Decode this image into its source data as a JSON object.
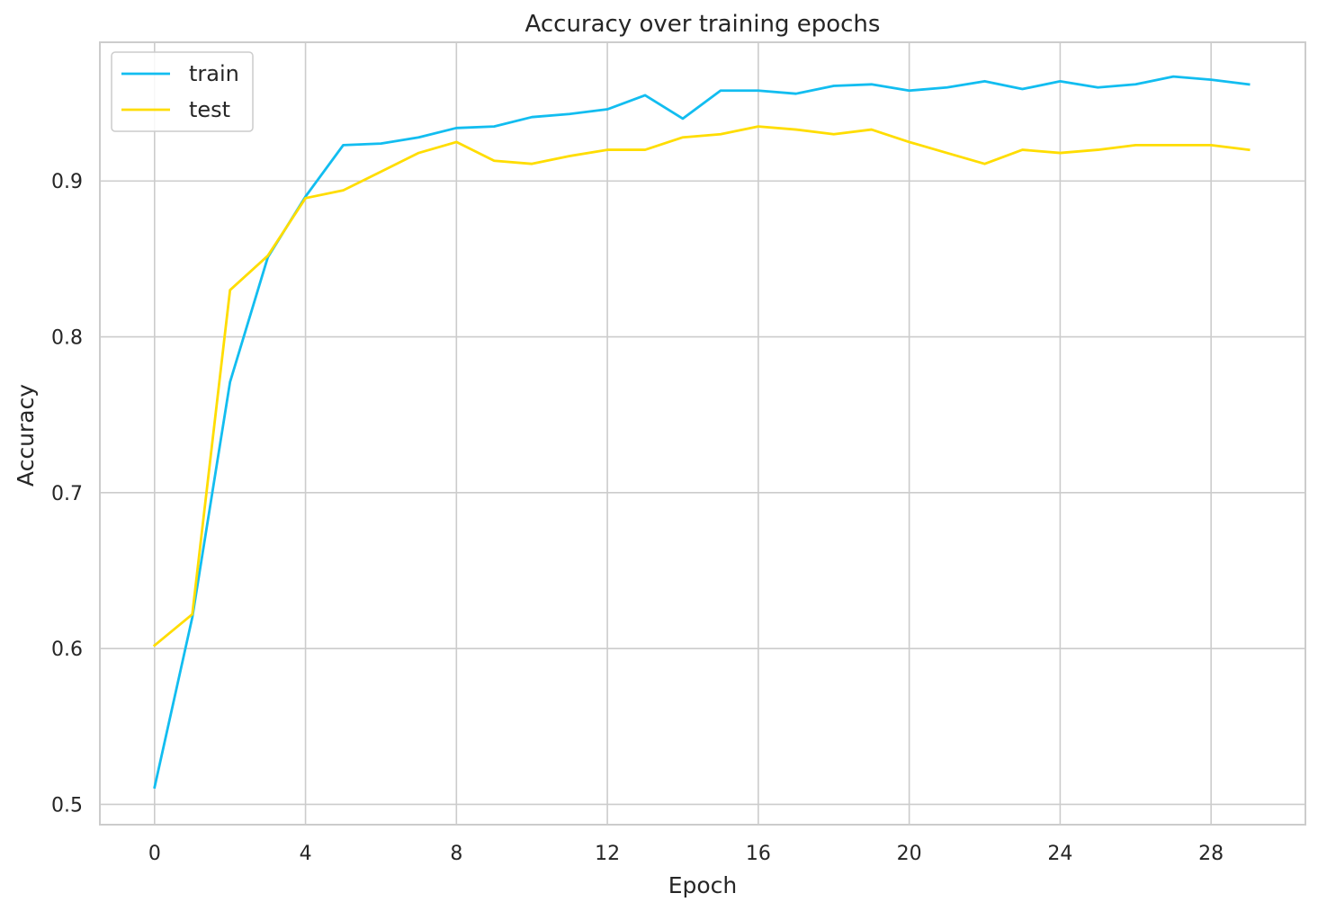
{
  "chart_data": {
    "type": "line",
    "title": "Accuracy over training epochs",
    "xlabel": "Epoch",
    "ylabel": "Accuracy",
    "x": [
      0,
      1,
      2,
      3,
      4,
      5,
      6,
      7,
      8,
      9,
      10,
      11,
      12,
      13,
      14,
      15,
      16,
      17,
      18,
      19,
      20,
      21,
      22,
      23,
      24,
      25,
      26,
      27,
      28,
      29
    ],
    "xlim": [
      -1.45,
      30.5
    ],
    "ylim": [
      0.487,
      0.989
    ],
    "xticks": [
      0,
      4,
      8,
      12,
      16,
      20,
      24,
      28
    ],
    "xtick_labels": [
      "0",
      "4",
      "8",
      "12",
      "16",
      "20",
      "24",
      "28"
    ],
    "yticks": [
      0.5,
      0.6,
      0.7,
      0.8,
      0.9
    ],
    "ytick_labels": [
      "0.5",
      "0.6",
      "0.7",
      "0.8",
      "0.9"
    ],
    "grid": true,
    "legend_position": "top-left",
    "series": [
      {
        "name": "train",
        "color": "#12bdf0",
        "values": [
          0.511,
          0.62,
          0.771,
          0.851,
          0.89,
          0.923,
          0.924,
          0.928,
          0.934,
          0.935,
          0.941,
          0.943,
          0.946,
          0.955,
          0.94,
          0.958,
          0.958,
          0.956,
          0.961,
          0.962,
          0.958,
          0.96,
          0.964,
          0.959,
          0.964,
          0.96,
          0.962,
          0.967,
          0.965,
          0.962
        ]
      },
      {
        "name": "test",
        "color": "#ffdd00",
        "values": [
          0.602,
          0.622,
          0.83,
          0.852,
          0.889,
          0.894,
          0.906,
          0.918,
          0.925,
          0.913,
          0.911,
          0.916,
          0.92,
          0.92,
          0.928,
          0.93,
          0.935,
          0.933,
          0.93,
          0.933,
          0.925,
          0.918,
          0.911,
          0.92,
          0.918,
          0.92,
          0.923,
          0.923,
          0.923,
          0.92
        ]
      }
    ]
  }
}
